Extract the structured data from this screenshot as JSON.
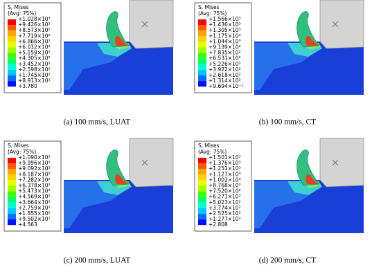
{
  "panels": [
    {
      "legend": {
        "title": "S, Mises",
        "subtitle": "(Avg: 75%)",
        "labels": [
          "+1.028×10³",
          "+9.426×10²",
          "+8.573×10²",
          "+7.719×10²",
          "+6.866×10²",
          "+6.012×10²",
          "+5.159×10²",
          "+4.305×10²",
          "+3.452×10²",
          "+2.598×10²",
          "+1.745×10²",
          "+8.913×10¹",
          "+3.780"
        ]
      },
      "caption": "(a) 100 mm/s, LUAT"
    },
    {
      "legend": {
        "title": "S, Mises",
        "subtitle": "(Avg: 75%)",
        "labels": [
          "+1.566×10³",
          "+1.436×10³",
          "+1.305×10³",
          "+1.175×10³",
          "+1.044×10³",
          "+9.139×10²",
          "+7.835×10²",
          "+6.531×10²",
          "+5.226×10²",
          "+3.922×10²",
          "+2.618×10²",
          "+1.314×10²",
          "+9.694×10⁻¹"
        ]
      },
      "caption": "(b) 100 mm/s, CT"
    },
    {
      "legend": {
        "title": "S, Mises",
        "subtitle": "(Avg: 75%)",
        "labels": [
          "+1.090×10³",
          "+9.996×10²",
          "+9.092×10²",
          "+8.187×10²",
          "+7.282×10²",
          "+6.378×10²",
          "+5.473×10²",
          "+4.569×10²",
          "+3.664×10²",
          "+2.759×10²",
          "+1.855×10²",
          "+9.502×10¹",
          "+4.563"
        ]
      },
      "caption": "(c) 200 mm/s, LUAT"
    },
    {
      "legend": {
        "title": "S, Mises",
        "subtitle": "(Avg: 75%)",
        "labels": [
          "+1.501×10³",
          "+1.376×10³",
          "+1.251×10³",
          "+1.127×10³",
          "+1.002×10³",
          "+8.768×10²",
          "+7.520×10²",
          "+6.271×10²",
          "+5.023×10²",
          "+3.774×10²",
          "+2.525×10²",
          "+1.277×10²",
          "+2.808"
        ]
      },
      "caption": "(d) 200 mm/s, CT"
    }
  ]
}
